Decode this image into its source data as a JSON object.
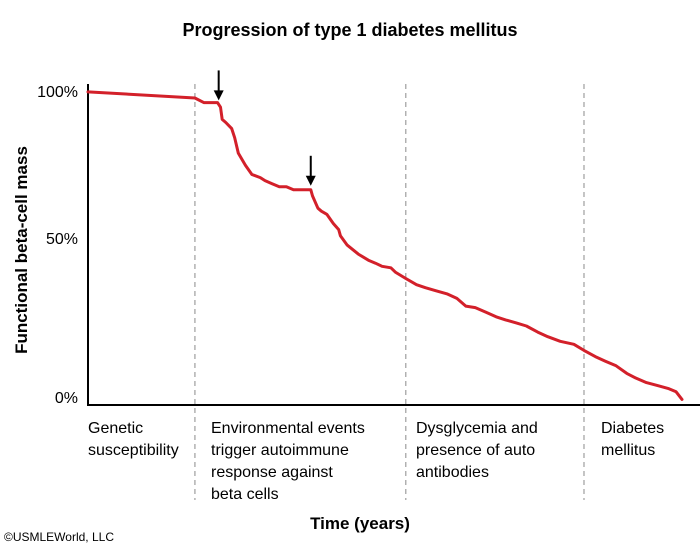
{
  "chart_data": {
    "type": "line",
    "title": "Progression of type 1 diabetes mellitus",
    "xlabel": "Time (years)",
    "ylabel": "Functional beta-cell mass",
    "y_tick_labels": [
      "100%",
      "50%",
      "0%"
    ],
    "ylim": [
      0,
      100
    ],
    "xlim": [
      0,
      100
    ],
    "stages": [
      {
        "label": "Genetic\nsusceptibility"
      },
      {
        "label": "Environmental events\ntrigger autoimmune\nresponse against\nbeta cells"
      },
      {
        "label": "Dysglycemia and\npresence of auto\nantibodies"
      },
      {
        "label": "Diabetes\nmellitus"
      }
    ],
    "stage_boundaries_x": [
      18,
      53.5,
      83.5
    ],
    "trigger_arrows_x": [
      22,
      37.5
    ],
    "series": [
      {
        "color": "#d3202a",
        "x": [
          0,
          18,
          19.5,
          21.8,
          22.3,
          22.6,
          23.2,
          24.2,
          24.7,
          25.3,
          26.5,
          27.6,
          29,
          29.8,
          31,
          32.2,
          33.4,
          34.6,
          36,
          37.5,
          37.8,
          38.7,
          39.3,
          40.2,
          41.3,
          42.2,
          42.5,
          43.6,
          45.5,
          47.2,
          48.4,
          49.5,
          51,
          51.8,
          53.5,
          55.3,
          56.8,
          58.6,
          60.4,
          62.1,
          63.6,
          65.2,
          67,
          68.7,
          70.3,
          72.1,
          73.8,
          75.7,
          77.4,
          79.5,
          81.8,
          83.5,
          85.4,
          87.1,
          88.9,
          90.7,
          92.2,
          94,
          95.9,
          97.8,
          99,
          100
        ],
        "values": [
          102,
          100,
          98.5,
          98.5,
          97,
          93,
          92,
          90,
          87,
          82,
          78,
          75,
          74,
          73,
          72,
          71,
          71,
          70,
          70,
          70,
          68,
          64,
          63,
          62,
          59,
          57,
          55,
          52,
          49,
          47,
          46,
          45,
          44.5,
          43,
          41,
          39,
          38,
          37,
          36,
          34.5,
          32,
          31.5,
          30,
          28.5,
          27.5,
          26.5,
          25.5,
          23.5,
          22,
          20.5,
          19.5,
          17.5,
          15.5,
          14,
          12.5,
          10,
          8.5,
          7,
          6,
          5,
          4,
          1.5
        ]
      }
    ]
  },
  "copyright": "©USMLEWorld, LLC",
  "colors": {
    "curve": "#d3202a",
    "axis": "#000000",
    "divider": "#9e9e9e"
  }
}
